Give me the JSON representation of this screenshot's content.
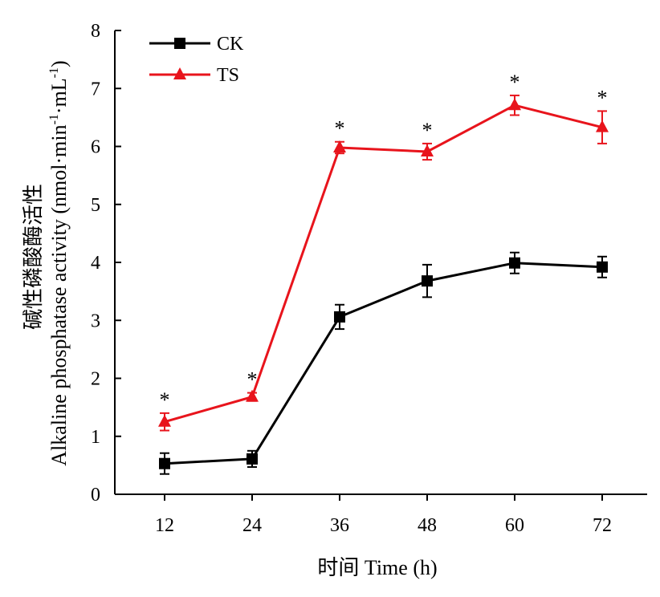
{
  "chart_data": {
    "type": "line",
    "x": [
      12,
      24,
      36,
      48,
      60,
      72
    ],
    "xlabel": "时间 Time (h)",
    "ylabel_cn": "碱性磷酸酶活性",
    "ylabel": "Alkaline phosphatase activity (nmol·min",
    "ylabel_exp1": "-1",
    "ylabel_mid": "·mL",
    "ylabel_exp2": "-1",
    "ylabel_end": ")",
    "ylim": [
      0,
      8
    ],
    "yticks": [
      0,
      1,
      2,
      3,
      4,
      5,
      6,
      7,
      8
    ],
    "grid": false,
    "legend_position": "top-left",
    "series": [
      {
        "name": "CK",
        "color": "#000000",
        "marker": "square",
        "values": [
          0.53,
          0.61,
          3.06,
          3.68,
          3.99,
          3.92
        ],
        "errors": [
          0.18,
          0.14,
          0.21,
          0.28,
          0.18,
          0.18
        ],
        "annotations": [
          "",
          "",
          "",
          "",
          "",
          ""
        ]
      },
      {
        "name": "TS",
        "color": "#e8141c",
        "marker": "triangle",
        "values": [
          1.25,
          1.68,
          5.98,
          5.91,
          6.71,
          6.33
        ],
        "errors": [
          0.15,
          0.07,
          0.1,
          0.14,
          0.17,
          0.28
        ],
        "annotations": [
          "*",
          "*",
          "*",
          "*",
          "*",
          "*"
        ]
      }
    ]
  }
}
